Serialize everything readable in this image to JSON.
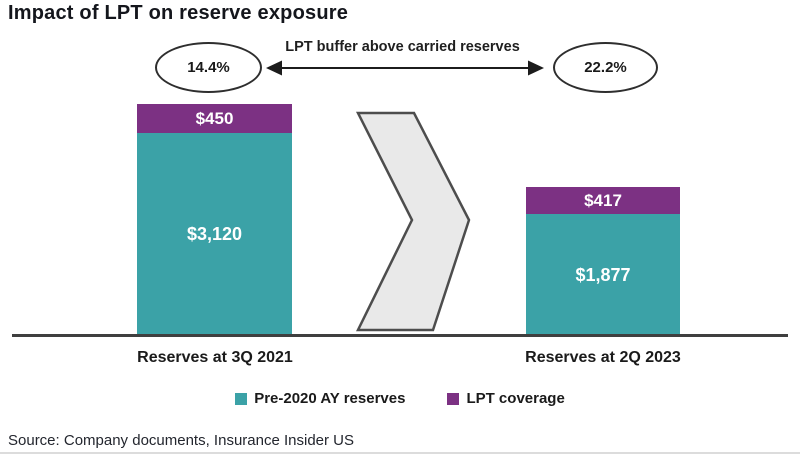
{
  "title": "Impact of LPT on reserve exposure",
  "annotation": {
    "arrow_label": "LPT buffer above carried reserves",
    "left_pct": "14.4%",
    "right_pct": "22.2%"
  },
  "chart_data": {
    "type": "bar",
    "stacked": true,
    "categories": [
      "Reserves at 3Q 2021",
      "Reserves at 2Q 2023"
    ],
    "series": [
      {
        "name": "Pre-2020 AY reserves",
        "color": "#3BA2A7",
        "values": [
          3120,
          1877
        ],
        "labels": [
          "$3,120",
          "$1,877"
        ]
      },
      {
        "name": "LPT coverage",
        "color": "#7C3183",
        "values": [
          450,
          417
        ],
        "labels": [
          "$450",
          "$417"
        ]
      }
    ],
    "annotations": {
      "lpt_buffer_above_carried_reserves": [
        "14.4%",
        "22.2%"
      ]
    },
    "ylim": [
      0,
      3570
    ],
    "grid": false,
    "legend_position": "bottom",
    "value_label_color": "#FFFFFF"
  },
  "source": "Source: Company documents, Insurance Insider US",
  "colors": {
    "teal": "#3BA2A7",
    "purple": "#7C3183",
    "axis_line": "#3F3F3F",
    "chevron_fill": "#E9E9E9",
    "chevron_stroke": "#4D4D4D",
    "text": "#1A1A1A"
  }
}
